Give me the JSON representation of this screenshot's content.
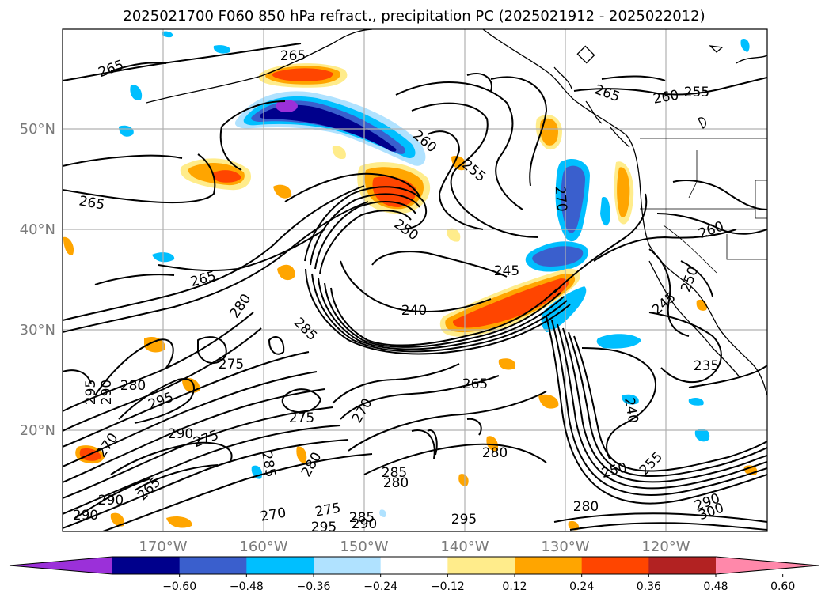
{
  "title": "2025021700 F060 850 hPa refract., precipitation PC (2025021912 - 2025022012)",
  "lon_ticks": [
    "170°W",
    "160°W",
    "150°W",
    "140°W",
    "130°W",
    "120°W"
  ],
  "lat_ticks": [
    "50°N",
    "40°N",
    "30°N",
    "20°N"
  ],
  "colorbar": {
    "tick_labels": [
      "-0.60",
      "-0.48",
      "-0.36",
      "-0.24",
      "-0.12",
      "0.12",
      "0.24",
      "0.36",
      "0.48",
      "0.60"
    ],
    "colors": [
      "#9b30d9",
      "#00008c",
      "#3a5fcd",
      "#00bfff",
      "#b0e2ff",
      "#ffffff",
      "#ffec8b",
      "#ffa500",
      "#ff4500",
      "#b22222",
      "#ff88aa"
    ]
  },
  "contour_labels": [
    {
      "text": "265"
    },
    {
      "text": "265"
    },
    {
      "text": "265"
    },
    {
      "text": "265"
    },
    {
      "text": "260"
    },
    {
      "text": "255"
    },
    {
      "text": "250"
    },
    {
      "text": "245"
    },
    {
      "text": "240"
    },
    {
      "text": "285"
    },
    {
      "text": "280"
    },
    {
      "text": "275"
    },
    {
      "text": "270"
    },
    {
      "text": "265"
    },
    {
      "text": "295"
    },
    {
      "text": "290"
    },
    {
      "text": "280"
    },
    {
      "text": "295"
    },
    {
      "text": "265"
    },
    {
      "text": "260"
    },
    {
      "text": "255"
    },
    {
      "text": "270"
    },
    {
      "text": "260"
    },
    {
      "text": "250"
    },
    {
      "text": "245"
    },
    {
      "text": "235"
    },
    {
      "text": "240"
    },
    {
      "text": "250"
    },
    {
      "text": "255"
    },
    {
      "text": "280"
    },
    {
      "text": "285"
    },
    {
      "text": "280"
    },
    {
      "text": "275"
    },
    {
      "text": "270"
    },
    {
      "text": "285"
    },
    {
      "text": "290"
    },
    {
      "text": "295"
    },
    {
      "text": "295"
    },
    {
      "text": "280"
    },
    {
      "text": "290"
    },
    {
      "text": "300"
    },
    {
      "text": "290"
    },
    {
      "text": "275"
    },
    {
      "text": "270"
    },
    {
      "text": "280"
    },
    {
      "text": "275"
    },
    {
      "text": "265"
    },
    {
      "text": "290"
    },
    {
      "text": "290"
    },
    {
      "text": "285"
    }
  ]
}
